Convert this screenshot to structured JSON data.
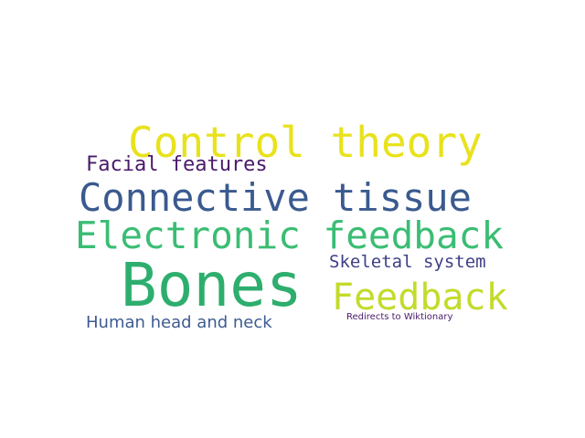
{
  "words": [
    {
      "text": "Control theory",
      "color": "#e8e21c"
    },
    {
      "text": "Facial features",
      "color": "#4a1a6a"
    },
    {
      "text": "Connective tissue",
      "color": "#3a5a8f"
    },
    {
      "text": "Electronic feedback",
      "color": "#3abd73"
    },
    {
      "text": "Bones",
      "color": "#2eae6e"
    },
    {
      "text": "Skeletal system",
      "color": "#3f3f87"
    },
    {
      "text": "Feedback",
      "color": "#c3db2a"
    },
    {
      "text": "Human head and neck",
      "color": "#3d5b91"
    },
    {
      "text": "Redirects to Wiktionary",
      "color": "#4a1a6a"
    }
  ]
}
